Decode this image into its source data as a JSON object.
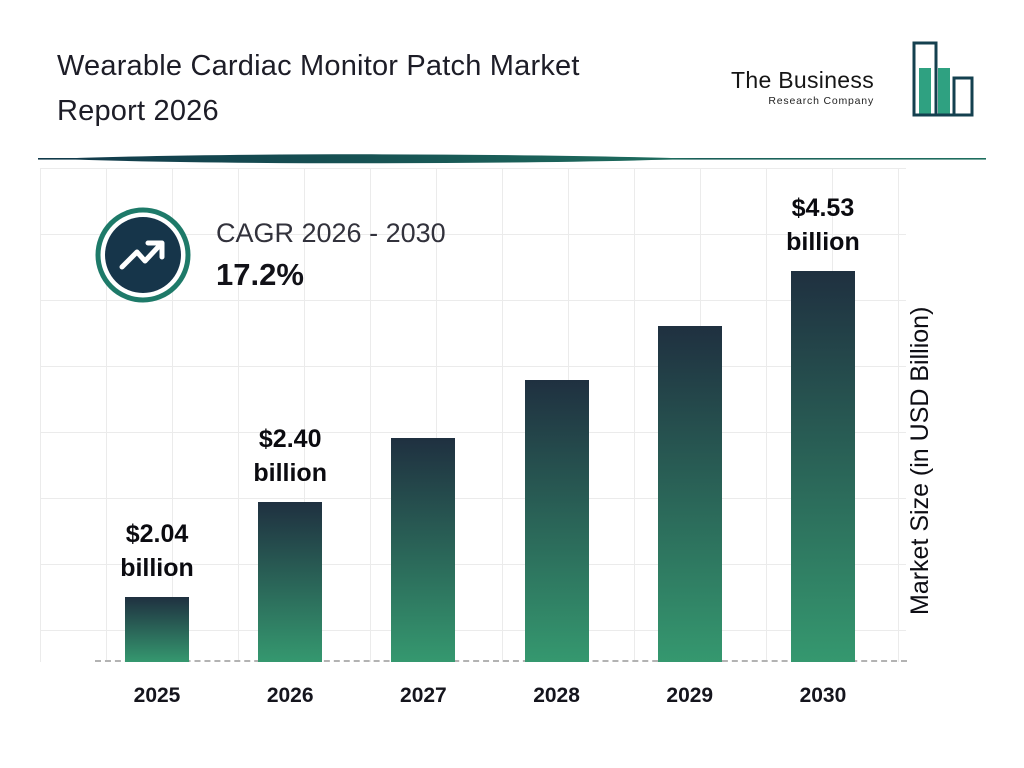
{
  "header": {
    "title_line1": "Wearable Cardiac Monitor Patch Market",
    "title_line2": "Report 2026",
    "logo": {
      "name_line1": "The Business",
      "name_line2": "Research Company"
    }
  },
  "cagr": {
    "label": "CAGR 2026 - 2030",
    "value": "17.2%"
  },
  "chart_data": {
    "type": "bar",
    "title": "Wearable Cardiac Monitor Patch Market Report 2026",
    "categories": [
      "2025",
      "2026",
      "2027",
      "2028",
      "2029",
      "2030"
    ],
    "values": [
      2.04,
      2.4,
      2.81,
      3.3,
      3.86,
      4.53
    ],
    "value_labels": [
      {
        "amount": "$2.04",
        "unit": "billion"
      },
      {
        "amount": "$2.40",
        "unit": "billion"
      },
      null,
      null,
      null,
      {
        "amount": "$4.53",
        "unit": "billion"
      }
    ],
    "xlabel": "",
    "ylabel": "Market Size (in USD Billion)",
    "ylim": [
      0,
      5
    ],
    "grid": true,
    "legend": "none",
    "cagr_2026_2030": "17.2%",
    "colors": {
      "bar_top": "#1f3040",
      "bar_bottom": "#35986f",
      "accent_teal": "#1e7a69",
      "navy": "#16354a"
    }
  }
}
